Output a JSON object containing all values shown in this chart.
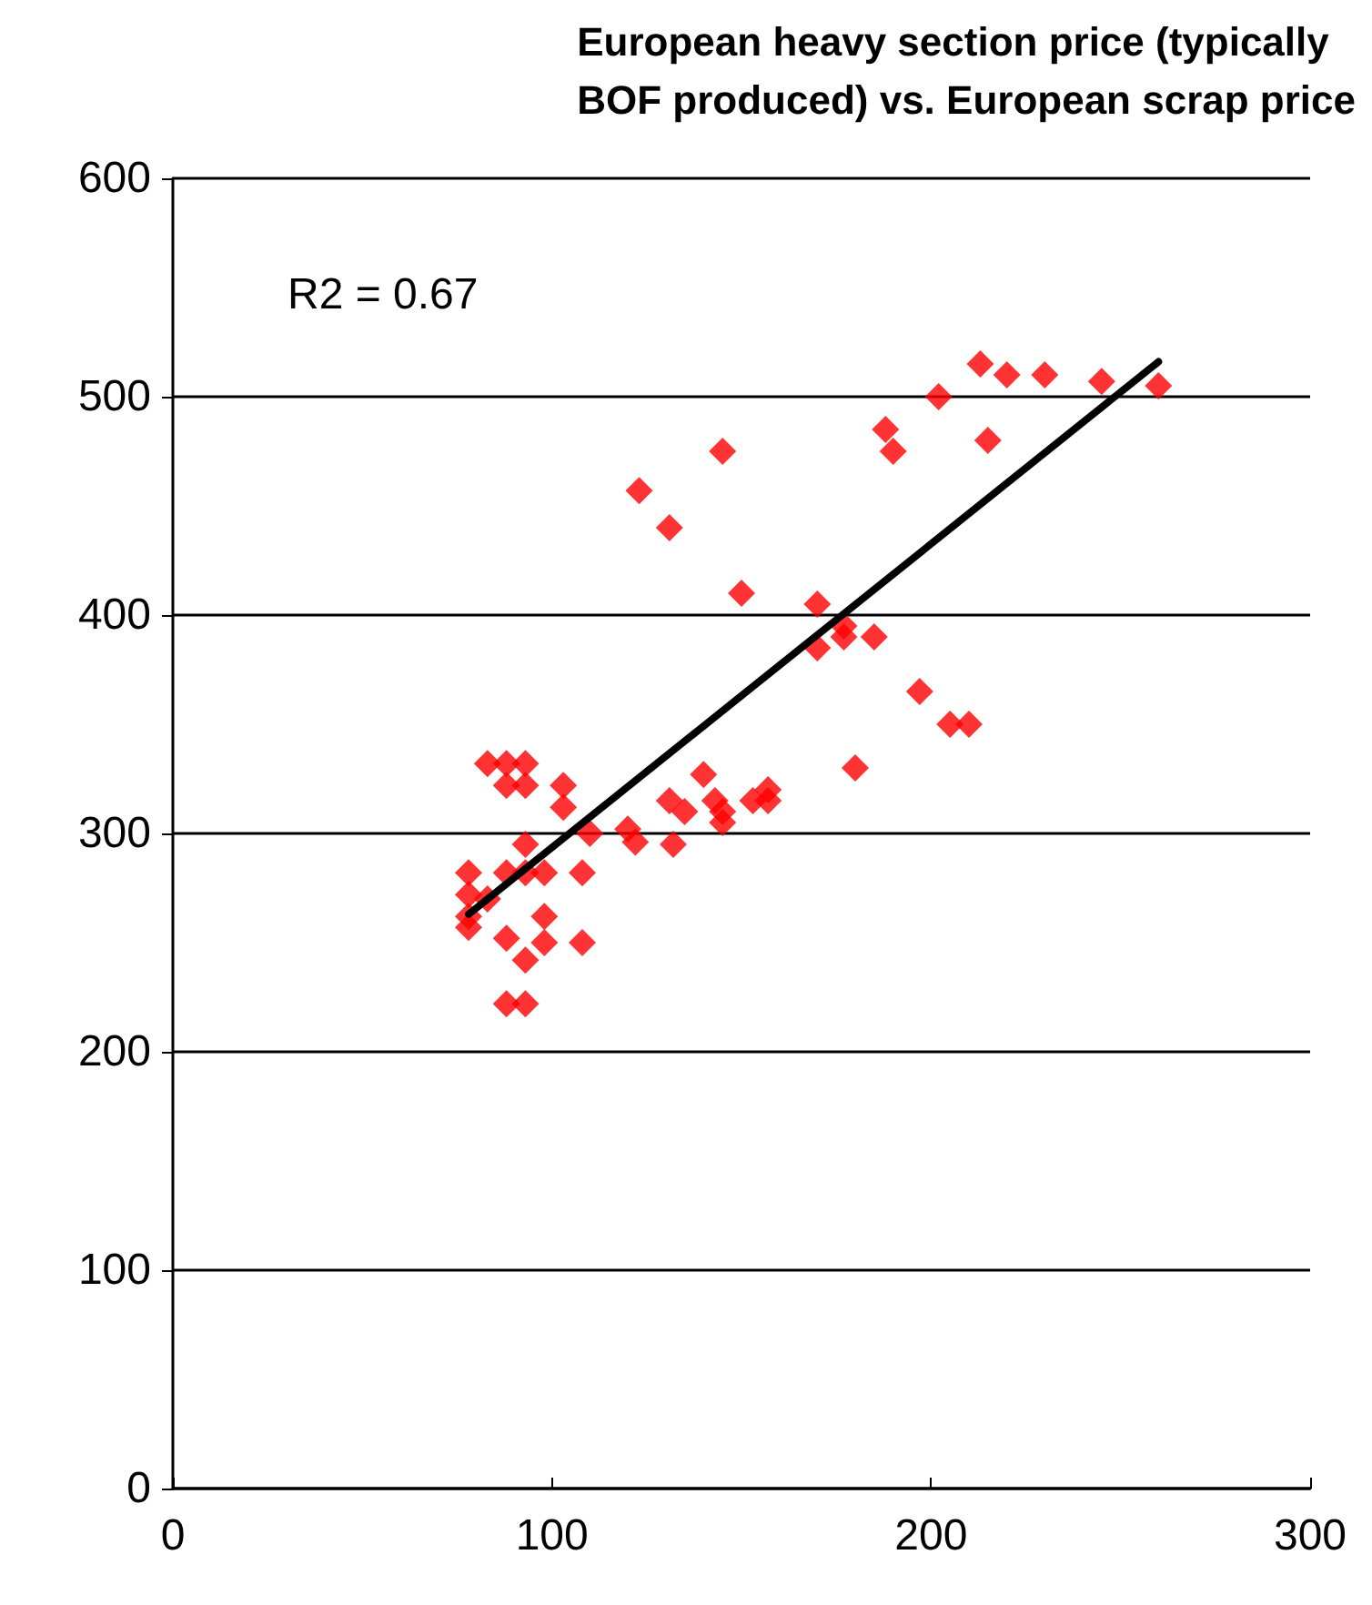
{
  "chart_data": {
    "type": "scatter",
    "title": "European heavy section price (typically\nBOF produced) vs. European scrap price",
    "xlim": [
      0,
      300
    ],
    "xticks": [
      0,
      100,
      200,
      300
    ],
    "ylim": [
      0,
      600
    ],
    "yticks": [
      0,
      100,
      200,
      300,
      400,
      500,
      600
    ],
    "grid": "y",
    "marker": "diamond",
    "annotations": [
      "R2 = 0.67"
    ],
    "series": [
      {
        "color": "#ff0000",
        "x": [
          78,
          78,
          78,
          78,
          83,
          83,
          88,
          88,
          88,
          88,
          88,
          93,
          93,
          93,
          93,
          93,
          93,
          98,
          98,
          98,
          103,
          103,
          108,
          108,
          110,
          120,
          122,
          123,
          131,
          131,
          132,
          135,
          140,
          143,
          145,
          145,
          145,
          150,
          153,
          157,
          157,
          170,
          170,
          177,
          177,
          180,
          185,
          188,
          190,
          197,
          202,
          205,
          210,
          213,
          215,
          220,
          230,
          245,
          260
        ],
        "values": [
          282,
          272,
          262,
          257,
          332,
          270,
          332,
          322,
          282,
          252,
          222,
          332,
          322,
          295,
          282,
          242,
          222,
          282,
          262,
          250,
          322,
          312,
          282,
          250,
          300,
          302,
          296,
          457,
          440,
          315,
          295,
          310,
          327,
          315,
          475,
          310,
          305,
          410,
          315,
          320,
          315,
          405,
          385,
          390,
          395,
          330,
          390,
          485,
          475,
          365,
          500,
          350,
          350,
          515,
          480,
          510,
          510,
          507,
          505
        ]
      },
      {
        "type": "line",
        "marker": "none",
        "color": "#000000",
        "x": [
          78,
          260
        ],
        "values": [
          263,
          516
        ]
      }
    ]
  }
}
